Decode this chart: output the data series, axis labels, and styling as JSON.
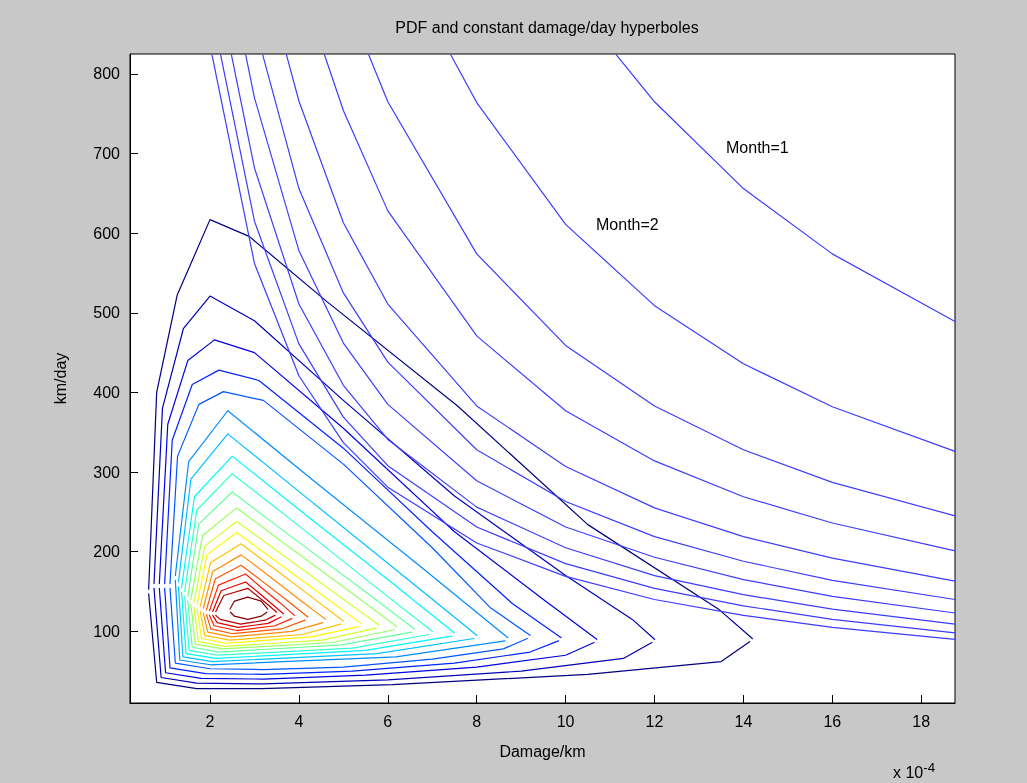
{
  "chart_data": {
    "type": "line",
    "title": "PDF and constant damage/day hyperboles",
    "xlabel": "Damage/km",
    "ylabel": "km/day",
    "xlim": [
      0.2,
      18.76
    ],
    "ylim": [
      10,
      825
    ],
    "xticks": [
      2,
      4,
      6,
      8,
      10,
      12,
      14,
      16,
      18
    ],
    "yticks": [
      100,
      200,
      300,
      400,
      500,
      600,
      700,
      800
    ],
    "grid": false,
    "marker": "none",
    "line_style": "solid",
    "annotations": [
      "Month=1",
      "Month=2",
      "x 10$^{-4}$"
    ],
    "series": [
      {
        "color": "#000080",
        "x": [
          0.62,
          0.8,
          1.26,
          2.0,
          2.88,
          4.63,
          7.57,
          10.5,
          13.46,
          14.2
        ],
        "values": [
          153,
          400,
          522,
          617,
          596,
          514,
          383,
          234,
          127,
          91
        ]
      },
      {
        "color": "#000080",
        "x": [
          0.62,
          0.8,
          1.7,
          3.17,
          6.1,
          10.5,
          13.5,
          14.14
        ],
        "values": [
          147,
          36,
          28,
          28,
          33,
          46,
          62,
          87
        ]
      },
      {
        "color": "#0000b5",
        "x": [
          0.74,
          0.93,
          1.4,
          2.0,
          3.0,
          5,
          7.5,
          10,
          11.5,
          12.0
        ],
        "values": [
          160,
          380,
          480,
          521,
          490,
          390,
          270,
          170,
          115,
          90
        ]
      },
      {
        "color": "#0000b5",
        "x": [
          0.74,
          0.9,
          1.7,
          3.2,
          6,
          9,
          11.3,
          11.94
        ],
        "values": [
          154,
          42,
          35,
          34,
          39,
          50,
          66,
          86
        ]
      },
      {
        "color": "#0000e0",
        "x": [
          0.86,
          1.05,
          1.5,
          2.1,
          3,
          5,
          7.5,
          9.5,
          10.7
        ],
        "values": [
          160,
          360,
          440,
          466,
          450,
          355,
          225,
          140,
          90
        ]
      },
      {
        "color": "#0000e0",
        "x": [
          0.86,
          1.0,
          1.8,
          3.2,
          5.5,
          8,
          10,
          10.64
        ],
        "values": [
          154,
          48,
          41,
          40,
          45,
          55,
          70,
          86
        ]
      },
      {
        "color": "#0021ff",
        "x": [
          0.98,
          1.15,
          1.6,
          2.2,
          3.1,
          5,
          7,
          8.8,
          9.9
        ],
        "values": [
          160,
          340,
          410,
          428,
          415,
          330,
          225,
          135,
          92
        ]
      },
      {
        "color": "#0021ff",
        "x": [
          0.98,
          1.1,
          1.9,
          3.2,
          5.2,
          7.5,
          9.2,
          9.84
        ],
        "values": [
          154,
          54,
          47,
          46,
          50,
          60,
          74,
          88
        ]
      },
      {
        "color": "#0057ff",
        "x": [
          1.1,
          1.27,
          1.75,
          2.3,
          3.2,
          5,
          7,
          8.3,
          9.2
        ],
        "values": [
          160,
          320,
          385,
          401,
          390,
          310,
          205,
          130,
          95
        ]
      },
      {
        "color": "#0057ff",
        "x": [
          1.1,
          1.22,
          2.0,
          3.2,
          5,
          7,
          8.6,
          9.14
        ],
        "values": [
          154,
          60,
          53,
          52,
          55,
          65,
          78,
          91
        ]
      },
      {
        "color": "#008cff",
        "x": [
          1.22,
          1.52,
          2.4,
          4.29,
          6.81,
          8.7
        ],
        "values": [
          170,
          313,
          377,
          291,
          178,
          92
        ]
      },
      {
        "color": "#008cff",
        "x": [
          1.22,
          1.32,
          2.01,
          6.18,
          8.64
        ],
        "values": [
          164,
          64,
          58,
          68,
          88
        ]
      },
      {
        "color": "#00c2ff",
        "x": [
          1.29,
          1.57,
          2.4,
          4.08,
          6.32,
          8.0
        ],
        "values": [
          162,
          291,
          348,
          272,
          171,
          95
        ]
      },
      {
        "color": "#00c2ff",
        "x": [
          1.29,
          1.39,
          2.05,
          5.76,
          7.94
        ],
        "values": [
          156,
          68,
          62,
          72,
          91
        ]
      },
      {
        "color": "#00f7ff",
        "x": [
          1.36,
          1.65,
          2.5,
          4.0,
          6.0,
          7.5
        ],
        "values": [
          155,
          269,
          320,
          253,
          165,
          98
        ]
      },
      {
        "color": "#00f7ff",
        "x": [
          1.36,
          1.46,
          2.13,
          5.5,
          7.44
        ],
        "values": [
          149,
          72,
          66,
          76,
          94
        ]
      },
      {
        "color": "#2effd1",
        "x": [
          1.43,
          1.7,
          2.5,
          3.85,
          5.65,
          7.0
        ],
        "values": [
          150,
          252,
          298,
          239,
          159,
          100
        ]
      },
      {
        "color": "#2effd1",
        "x": [
          1.43,
          1.53,
          2.17,
          5.2,
          6.94
        ],
        "values": [
          144,
          76,
          70,
          79,
          96
        ]
      },
      {
        "color": "#66ff99",
        "x": [
          1.5,
          1.75,
          2.5,
          3.73,
          5.37,
          6.6
        ],
        "values": [
          144,
          235,
          275,
          223,
          155,
          103
        ]
      },
      {
        "color": "#66ff99",
        "x": [
          1.5,
          1.6,
          2.2,
          4.96,
          6.54
        ],
        "values": [
          138,
          80,
          74,
          83,
          99
        ]
      },
      {
        "color": "#99ff66",
        "x": [
          1.57,
          1.83,
          2.6,
          3.68,
          5.12,
          6.2
        ],
        "values": [
          140,
          220,
          255,
          210,
          151,
          106
        ]
      },
      {
        "color": "#99ff66",
        "x": [
          1.57,
          1.67,
          2.29,
          4.76,
          6.14
        ],
        "values": [
          134,
          84,
          78,
          86,
          102
        ]
      },
      {
        "color": "#d1ff2e",
        "x": [
          1.64,
          1.88,
          2.6,
          3.56,
          4.84,
          5.8
        ],
        "values": [
          136,
          207,
          238,
          199,
          147,
          108
        ]
      },
      {
        "color": "#d1ff2e",
        "x": [
          1.64,
          1.74,
          2.32,
          4.52,
          5.74
        ],
        "values": [
          130,
          87,
          81,
          89,
          104
        ]
      },
      {
        "color": "#fff700",
        "x": [
          1.71,
          1.93,
          2.6,
          3.44,
          4.56,
          5.4
        ],
        "values": [
          134,
          196,
          224,
          190,
          144,
          110
        ]
      },
      {
        "color": "#fff700",
        "x": [
          1.71,
          1.81,
          2.36,
          4.28,
          5.34
        ],
        "values": [
          128,
          91,
          85,
          93,
          106
        ]
      },
      {
        "color": "#ffc200",
        "x": [
          1.78,
          2.01,
          2.7,
          3.39,
          4.31,
          5.0
        ],
        "values": [
          131,
          186,
          210,
          181,
          142,
          113
        ]
      },
      {
        "color": "#ffc200",
        "x": [
          1.78,
          1.88,
          2.44,
          4.08,
          4.94
        ],
        "values": [
          125,
          95,
          89,
          96,
          109
        ]
      },
      {
        "color": "#ff8c00",
        "x": [
          1.85,
          2.06,
          2.7,
          3.27,
          4.03,
          4.6
        ],
        "values": [
          129,
          175,
          196,
          172,
          139,
          115
        ]
      },
      {
        "color": "#ff8c00",
        "x": [
          1.85,
          1.95,
          2.48,
          3.84,
          4.54
        ],
        "values": [
          123,
          99,
          93,
          100,
          111
        ]
      },
      {
        "color": "#ff5700",
        "x": [
          1.92,
          2.12,
          2.7,
          3.15,
          3.75,
          4.2
        ],
        "values": [
          127,
          166,
          183,
          164,
          138,
          118
        ]
      },
      {
        "color": "#ff5700",
        "x": [
          1.92,
          2.02,
          2.51,
          3.6,
          4.14
        ],
        "values": [
          121,
          103,
          97,
          103,
          114
        ]
      },
      {
        "color": "#ff2100",
        "x": [
          1.99,
          2.19,
          2.8,
          3.13,
          3.57,
          3.9
        ],
        "values": [
          126,
          158,
          172,
          156,
          136,
          120
        ]
      },
      {
        "color": "#ff2100",
        "x": [
          1.99,
          2.09,
          2.6,
          3.46,
          3.84
        ],
        "values": [
          120,
          107,
          101,
          107,
          116
        ]
      },
      {
        "color": "#e00000",
        "x": [
          2.06,
          2.25,
          2.8,
          3.06,
          3.4,
          3.65
        ],
        "values": [
          125,
          151,
          162,
          150,
          134,
          122
        ]
      },
      {
        "color": "#e00000",
        "x": [
          2.06,
          2.16,
          2.63,
          3.31,
          3.6
        ],
        "values": [
          120,
          111,
          105,
          110,
          118
        ]
      },
      {
        "color": "#b50000",
        "x": [
          2.13,
          2.31,
          2.85,
          3.05,
          3.31,
          3.5
        ],
        "values": [
          125,
          145,
          154,
          145,
          133,
          124
        ]
      },
      {
        "color": "#b50000",
        "x": [
          2.13,
          2.23,
          2.69,
          3.24,
          3.46
        ],
        "values": [
          120,
          115,
          109,
          114,
          120
        ]
      },
      {
        "color": "#800000",
        "x": [
          2.45,
          2.55,
          2.85,
          3.15,
          3.3
        ],
        "values": [
          128,
          138,
          143,
          138,
          128
        ]
      },
      {
        "color": "#800000",
        "x": [
          2.46,
          2.55,
          2.85,
          3.15,
          3.28
        ],
        "values": [
          124,
          119,
          115,
          119,
          124
        ]
      },
      {
        "color": "#3c3cff",
        "x": [
          2.045,
          3,
          4,
          5,
          6,
          8,
          10,
          12,
          14,
          16,
          18.76
        ],
        "values": [
          824,
          562,
          421,
          337,
          281,
          211,
          169,
          140,
          120,
          105,
          90
        ]
      },
      {
        "color": "#3c3cff",
        "x": [
          2.239,
          3,
          4,
          5,
          6,
          8,
          10,
          12,
          14,
          16,
          18.76
        ],
        "values": [
          824,
          615,
          461,
          369,
          308,
          231,
          185,
          154,
          132,
          115,
          98
        ]
      },
      {
        "color": "#3c3cff",
        "x": [
          2.482,
          3,
          4,
          5,
          6,
          8,
          10,
          12,
          14,
          16,
          18.76
        ],
        "values": [
          824,
          682,
          511,
          409,
          341,
          256,
          205,
          170,
          146,
          128,
          109
        ]
      },
      {
        "color": "#3c3cff",
        "x": [
          2.803,
          3,
          4,
          5,
          6,
          8,
          10,
          12,
          14,
          16,
          18.76
        ],
        "values": [
          824,
          770,
          578,
          462,
          385,
          289,
          231,
          193,
          165,
          144,
          123
        ]
      },
      {
        "color": "#3c3cff",
        "x": [
          3.186,
          4,
          5,
          6,
          8,
          10,
          12,
          14,
          16,
          18.76
        ],
        "values": [
          824,
          656,
          525,
          438,
          328,
          263,
          219,
          188,
          164,
          140
        ]
      },
      {
        "color": "#3c3cff",
        "x": [
          3.72,
          4,
          5,
          6,
          8,
          10,
          12,
          14,
          16,
          18.76
        ],
        "values": [
          824,
          766,
          613,
          511,
          383,
          307,
          255,
          219,
          192,
          163
        ]
      },
      {
        "color": "#3c3cff",
        "x": [
          4.575,
          5,
          6,
          8,
          10,
          12,
          14,
          16,
          18.76
        ],
        "values": [
          824,
          754,
          628,
          471,
          377,
          314,
          269,
          236,
          201
        ]
      },
      {
        "color": "#3c3cff",
        "x": [
          5.57,
          6,
          8,
          10,
          12,
          14,
          16,
          18.76
        ],
        "values": [
          824,
          765,
          574,
          459,
          383,
          328,
          287,
          245
        ]
      },
      {
        "color": "#3c3cff",
        "x": [
          7.415,
          8,
          10,
          12,
          14,
          16,
          18.76
        ],
        "values": [
          824,
          764,
          611,
          509,
          436,
          382,
          326
        ]
      },
      {
        "color": "#3c3cff",
        "x": [
          11.141,
          12,
          14,
          16,
          18.76
        ],
        "values": [
          824,
          765,
          656,
          574,
          489
        ]
      }
    ]
  }
}
